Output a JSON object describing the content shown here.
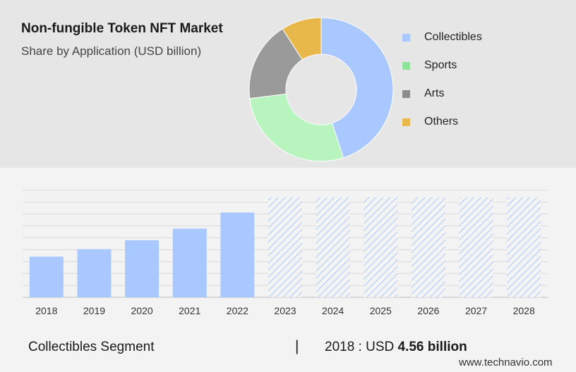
{
  "header": {
    "title": "Non-fungible Token NFT Market",
    "subtitle": "Share by Application (USD billion)"
  },
  "legend": [
    {
      "label": "Collectibles",
      "color": "#a9c8ff"
    },
    {
      "label": "Sports",
      "color": "#8ee39a"
    },
    {
      "label": "Arts",
      "color": "#8c8c8c"
    },
    {
      "label": "Others",
      "color": "#e8b84a"
    }
  ],
  "footer": {
    "segment": "Collectibles Segment",
    "divider": "|",
    "value_prefix": "2018 : USD",
    "value_strong": "4.56 billion"
  },
  "brand": "www.technavio.com",
  "chart_data": [
    {
      "type": "pie",
      "variant": "donut",
      "categories": [
        "Collectibles",
        "Sports",
        "Arts",
        "Others"
      ],
      "values": [
        45,
        28,
        18,
        9
      ],
      "colors": [
        "#a9c8ff",
        "#b8f5be",
        "#9a9a9a",
        "#e8b84a"
      ],
      "legend_position": "right"
    },
    {
      "type": "bar",
      "categories": [
        "2018",
        "2019",
        "2020",
        "2021",
        "2022",
        "2023",
        "2024",
        "2025",
        "2026",
        "2027",
        "2028"
      ],
      "values": [
        4.56,
        5.4,
        6.4,
        7.7,
        9.5,
        null,
        null,
        null,
        null,
        null,
        null
      ],
      "forecast_from": "2023",
      "ylim": [
        0,
        12
      ],
      "grid": true,
      "bar_color": "#a9c8ff",
      "forecast_color": "#a9c8ff"
    }
  ]
}
